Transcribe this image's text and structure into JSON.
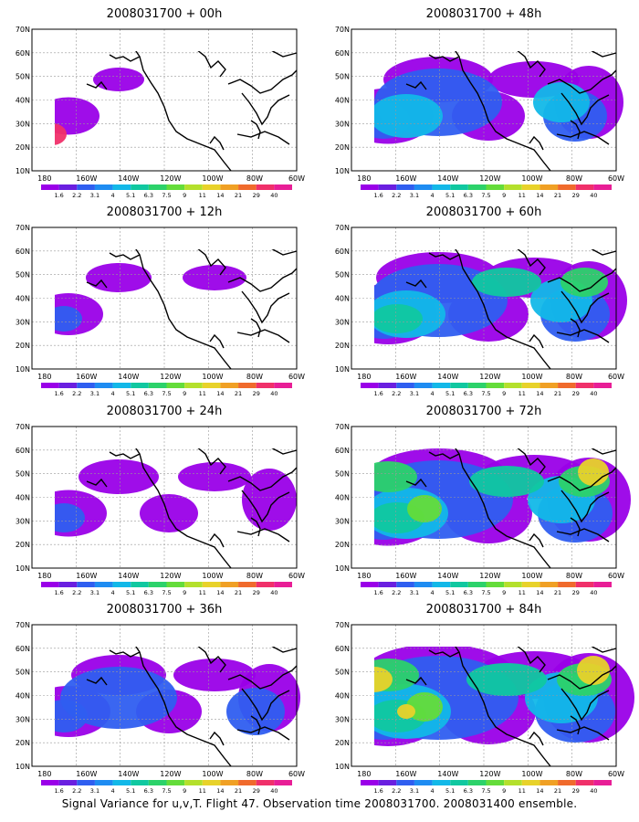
{
  "panels": [
    {
      "title": "2008031700 + 00h",
      "col": 0,
      "row": 0,
      "level": 1
    },
    {
      "title": "2008031700 + 12h",
      "col": 0,
      "row": 1,
      "level": 2
    },
    {
      "title": "2008031700 + 24h",
      "col": 0,
      "row": 2,
      "level": 3
    },
    {
      "title": "2008031700 + 36h",
      "col": 0,
      "row": 3,
      "level": 4
    },
    {
      "title": "2008031700 + 48h",
      "col": 1,
      "row": 0,
      "level": 5
    },
    {
      "title": "2008031700 + 60h",
      "col": 1,
      "row": 1,
      "level": 6
    },
    {
      "title": "2008031700 + 72h",
      "col": 1,
      "row": 2,
      "level": 7
    },
    {
      "title": "2008031700 + 84h",
      "col": 1,
      "row": 3,
      "level": 8
    }
  ],
  "axes": {
    "lat_labels": [
      "70N",
      "60N",
      "50N",
      "40N",
      "30N",
      "20N",
      "10N"
    ],
    "lon_labels": [
      "180",
      "160W",
      "140W",
      "120W",
      "100W",
      "80W",
      "60W"
    ]
  },
  "colorbar": {
    "levels": [
      "1.6",
      "2.2",
      "3.1",
      "4",
      "5.1",
      "6.3",
      "7.5",
      "9",
      "11",
      "14",
      "21",
      "29",
      "40"
    ],
    "colors": [
      "#9a00e8",
      "#6a1fe0",
      "#2f5ef0",
      "#1e8cf2",
      "#12b8e8",
      "#10c8a0",
      "#2cd26a",
      "#64dc3a",
      "#b4e02c",
      "#e8d22a",
      "#f0a024",
      "#f06a2c",
      "#f0306a",
      "#e81e96"
    ]
  },
  "caption": "Signal Variance for u,v,T. Flight 47. Observation time 2008031700. 2008031400 ensemble."
}
